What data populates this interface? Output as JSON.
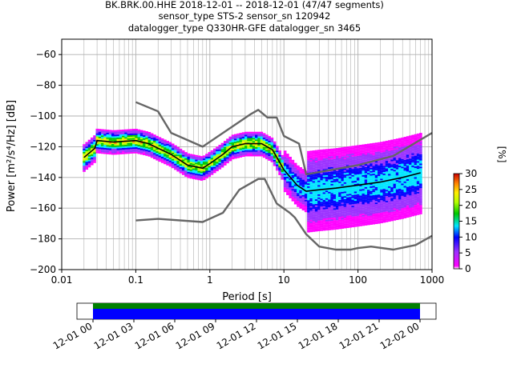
{
  "title_lines": [
    "BK.BRK.00.HHE   2018-12-01 -- 2018-12-01  (47/47 segments)",
    "sensor_type STS-2 sensor_sn 120942",
    "datalogger_type Q330HR-GFE datalogger_sn 3465"
  ],
  "colorbar": {
    "label": "[%]",
    "range": [
      0,
      30
    ],
    "ticks": [
      "0",
      "5",
      "10",
      "15",
      "20",
      "25",
      "30"
    ]
  },
  "time_axis": {
    "ticks": [
      "12-01 00",
      "12-01 03",
      "12-01 06",
      "12-01 09",
      "12-01 12",
      "12-01 15",
      "12-01 18",
      "12-01 21",
      "12-02 00"
    ],
    "coverage_colors": [
      "#008000",
      "#0000ff"
    ]
  },
  "chart_data": {
    "type": "heatmap",
    "title": "BK.BRK.00.HHE   2018-12-01 -- 2018-12-01  (47/47 segments)",
    "xlabel": "Period [s]",
    "ylabel": "Power [m²/s⁴/Hz] [dB]",
    "x_scale": "log",
    "xlim": [
      0.01,
      1000
    ],
    "ylim": [
      -200,
      -50
    ],
    "x_ticks": [
      "0.01",
      "0.1",
      "1",
      "10",
      "100",
      "1000"
    ],
    "y_ticks": [
      "−60",
      "−80",
      "−100",
      "−120",
      "−140",
      "−160",
      "−180",
      "−200"
    ],
    "grid": true,
    "series": [
      {
        "role": "noise_model_upper",
        "color": "#666666",
        "x": [
          0.1,
          0.2,
          0.3,
          0.8,
          3.5,
          4.5,
          6,
          8,
          10,
          16,
          20,
          100,
          300,
          1000
        ],
        "y": [
          -91,
          -97,
          -111,
          -120,
          -99,
          -96,
          -101,
          -101,
          -113,
          -118,
          -138,
          -132,
          -126,
          -111
        ]
      },
      {
        "role": "noise_model_lower",
        "color": "#666666",
        "x": [
          0.1,
          0.2,
          0.8,
          1.5,
          2.5,
          4.5,
          5.5,
          8,
          12,
          14,
          20,
          30,
          50,
          80,
          100,
          150,
          300,
          600,
          1000
        ],
        "y": [
          -168,
          -167,
          -169,
          -163,
          -148,
          -141,
          -141,
          -157,
          -163,
          -166,
          -177,
          -185,
          -187,
          -187,
          -186,
          -185,
          -187,
          -184,
          -178
        ]
      },
      {
        "role": "mean_psd",
        "color": "#000000",
        "x": [
          0.02,
          0.025,
          0.028,
          0.03,
          0.05,
          0.1,
          0.15,
          0.2,
          0.3,
          0.5,
          0.8,
          1.0,
          1.5,
          2,
          3,
          5,
          7,
          10,
          15,
          20,
          30,
          50,
          100,
          200,
          400,
          700
        ],
        "y": [
          -127,
          -123,
          -121,
          -116,
          -117,
          -116,
          -118,
          -121,
          -125,
          -132,
          -134,
          -131,
          -125,
          -120,
          -118,
          -118,
          -122,
          -135,
          -145,
          -149,
          -148,
          -147,
          -145,
          -143,
          -140,
          -137
        ]
      }
    ],
    "colorbar_range": [
      0,
      30
    ],
    "colorbar_label": "[%]"
  }
}
